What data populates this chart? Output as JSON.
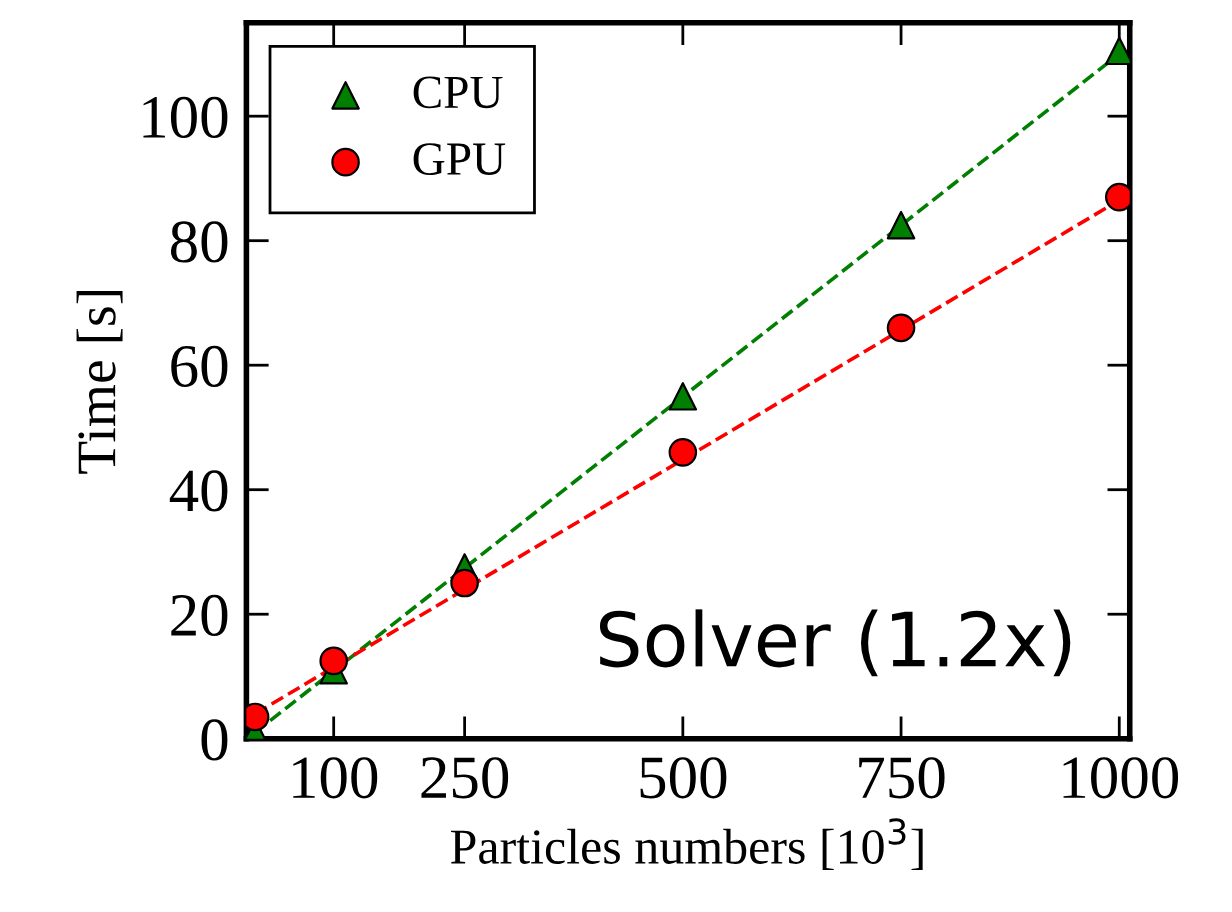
{
  "chart_data": {
    "type": "scatter",
    "xlabel": "Particles numbers [10$^{3}$]",
    "ylabel": "Time [s]",
    "annotations": [
      "Solver (1.2x)"
    ],
    "xlim": [
      0,
      1012
    ],
    "xticks": [
      100,
      250,
      500,
      750,
      1000
    ],
    "ylim": [
      0,
      115
    ],
    "yticks": [
      0,
      20,
      40,
      60,
      80,
      100
    ],
    "grid": false,
    "legend": "top left",
    "series": [
      {
        "name": "CPU",
        "marker": "triangle",
        "color": "#007f00",
        "x": [
          10,
          100,
          250,
          500,
          750,
          1000
        ],
        "values": [
          1,
          11,
          27.5,
          55,
          82.5,
          110.5
        ]
      },
      {
        "name": "GPU",
        "marker": "circle",
        "color": "#ff0000",
        "x": [
          10,
          100,
          250,
          500,
          750,
          1000
        ],
        "values": [
          3.5,
          12.5,
          25,
          46,
          66,
          87
        ]
      },
      {
        "type": "line",
        "line_style": "dashed",
        "color": "#007f00",
        "x": [
          10,
          1000
        ],
        "values": [
          1,
          110
        ]
      },
      {
        "type": "line",
        "line_style": "dashed",
        "color": "#ff0000",
        "x": [
          10,
          1000
        ],
        "values": [
          4,
          86.5
        ]
      }
    ]
  }
}
